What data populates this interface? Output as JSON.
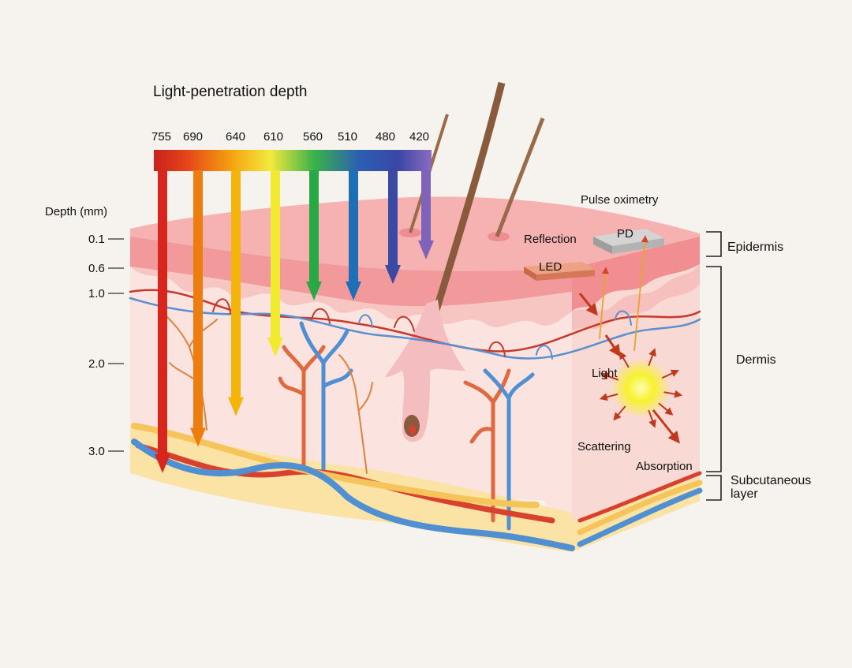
{
  "title": "Light-penetration depth",
  "wavelengths": [
    {
      "label": "755",
      "color": "#d7261e",
      "depth_mm": 3.25
    },
    {
      "label": "690",
      "color": "#ee7d0f",
      "depth_mm": 2.95
    },
    {
      "label": "640",
      "color": "#f4b40a",
      "depth_mm": 2.6
    },
    {
      "label": "610",
      "color": "#f1ea2e",
      "depth_mm": 1.9
    },
    {
      "label": "560",
      "color": "#2aa846",
      "depth_mm": 1.1
    },
    {
      "label": "510",
      "color": "#1f6fb6",
      "depth_mm": 1.1
    },
    {
      "label": "480",
      "color": "#3a4aa3",
      "depth_mm": 0.85
    },
    {
      "label": "420",
      "color": "#7e63b8",
      "depth_mm": 0.45
    }
  ],
  "depth_axis": {
    "title": "Depth (mm)",
    "ticks": [
      "0.1",
      "0.6",
      "1.0",
      "2.0",
      "3.0"
    ]
  },
  "layers": {
    "epidermis": "Epidermis",
    "dermis": "Dermis",
    "subcutaneous_line1": "Subcutaneous",
    "subcutaneous_line2": "layer"
  },
  "pulse_oximetry": {
    "title": "Pulse oximetry",
    "reflection": "Reflection",
    "pd": "PD",
    "led": "LED",
    "light": "Light",
    "scattering": "Scattering",
    "absorption": "Absorption"
  },
  "colors": {
    "background": "#f6f3ee",
    "epidermis": "#f4a3a4",
    "dermis": "#fbe3e0",
    "subcutaneous": "#fbe3a6",
    "artery": "#d9412f",
    "vein": "#4f8fd2",
    "hair": "#8a5a3c",
    "led": "#e58a6c",
    "pd": "#bcbcbc"
  }
}
